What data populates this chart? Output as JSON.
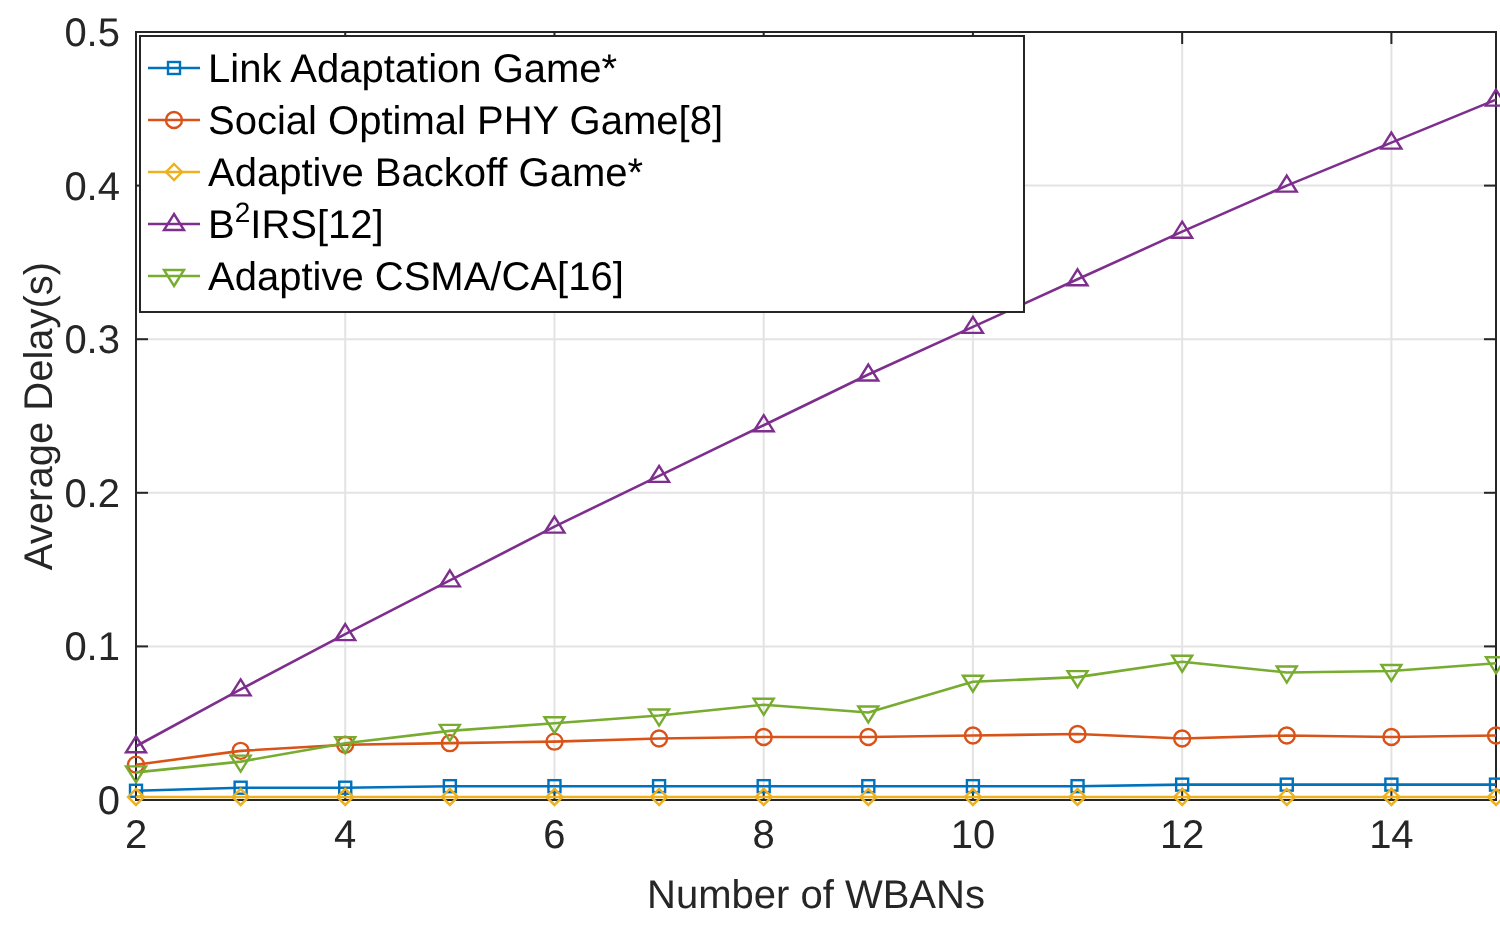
{
  "chart_data": {
    "type": "line",
    "xlabel": "Number of WBANs",
    "ylabel": "Average Delay(s)",
    "x": [
      2,
      3,
      4,
      5,
      6,
      7,
      8,
      9,
      10,
      11,
      12,
      13,
      14,
      15
    ],
    "xlim": [
      2,
      15
    ],
    "xticks": [
      2,
      4,
      6,
      8,
      10,
      12,
      14
    ],
    "ylim": [
      0,
      0.5
    ],
    "yticks": [
      0,
      0.1,
      0.2,
      0.3,
      0.4,
      0.5
    ],
    "grid": true,
    "legend": "top left",
    "line_style": "solid",
    "series": [
      {
        "name": "Link Adaptation Game*",
        "color": "#0072bd",
        "marker": "square",
        "values": [
          0.006,
          0.008,
          0.008,
          0.009,
          0.009,
          0.009,
          0.009,
          0.009,
          0.009,
          0.009,
          0.01,
          0.01,
          0.01,
          0.01
        ]
      },
      {
        "name": "Social Optimal PHY Game[8]",
        "color": "#d95319",
        "marker": "circle",
        "values": [
          0.023,
          0.032,
          0.036,
          0.037,
          0.038,
          0.04,
          0.041,
          0.041,
          0.042,
          0.043,
          0.04,
          0.042,
          0.041,
          0.042
        ]
      },
      {
        "name": "Adaptive Backoff Game*",
        "color": "#edb120",
        "marker": "diamond",
        "values": [
          0.002,
          0.002,
          0.002,
          0.002,
          0.002,
          0.002,
          0.002,
          0.002,
          0.002,
          0.002,
          0.002,
          0.002,
          0.002,
          0.002
        ]
      },
      {
        "name": "B$^{2}$IRS[12]",
        "color": "#7e2f8e",
        "marker": "triangle",
        "values": [
          0.035,
          0.072,
          0.108,
          0.143,
          0.178,
          0.211,
          0.244,
          0.277,
          0.308,
          0.339,
          0.37,
          0.4,
          0.428,
          0.456
        ]
      },
      {
        "name": "Adaptive CSMA/CA[16]",
        "color": "#77ac30",
        "marker": "triangle-down",
        "values": [
          0.018,
          0.025,
          0.037,
          0.045,
          0.05,
          0.055,
          0.062,
          0.057,
          0.077,
          0.08,
          0.09,
          0.083,
          0.084,
          0.089
        ]
      }
    ]
  }
}
